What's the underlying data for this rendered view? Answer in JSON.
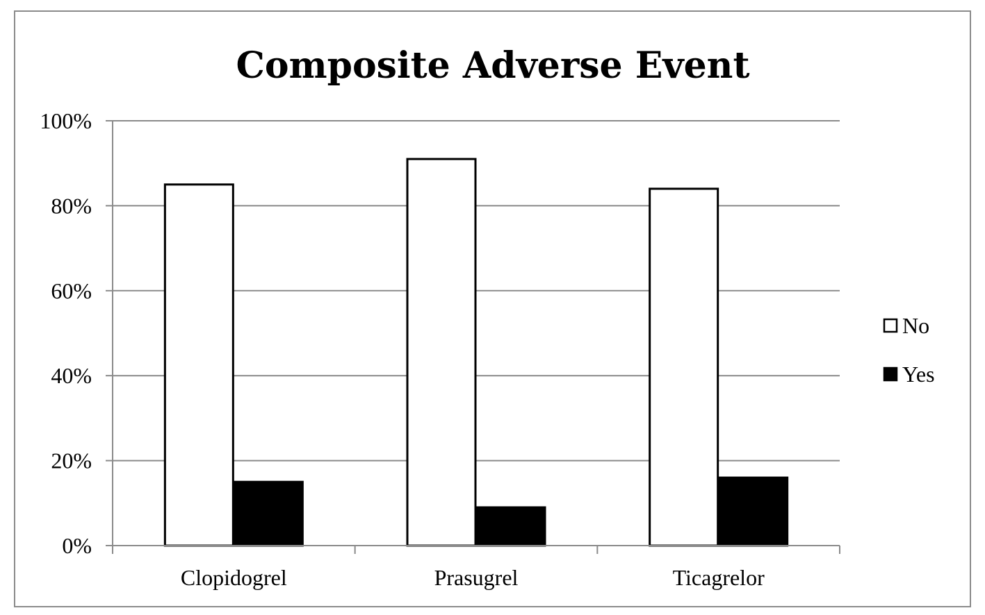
{
  "chart_data": {
    "type": "bar",
    "title": "Composite Adverse Event",
    "xlabel": "",
    "ylabel": "",
    "categories": [
      "Clopidogrel",
      "Prasugrel",
      "Ticagrelor"
    ],
    "series": [
      {
        "name": "No",
        "values": [
          85,
          91,
          84
        ],
        "color": "#ffffff",
        "stroke": "#000000"
      },
      {
        "name": "Yes",
        "values": [
          15,
          9,
          16
        ],
        "color": "#000000",
        "stroke": "#000000"
      }
    ],
    "ylim": [
      0,
      100
    ],
    "y_ticks": [
      0,
      20,
      40,
      60,
      80,
      100
    ],
    "y_tick_labels": [
      "0%",
      "20%",
      "40%",
      "60%",
      "80%",
      "100%"
    ],
    "grid": true,
    "legend_position": "right",
    "colors": {
      "gridline": "#8a8a8a",
      "frame": "#8a8a8a"
    }
  }
}
